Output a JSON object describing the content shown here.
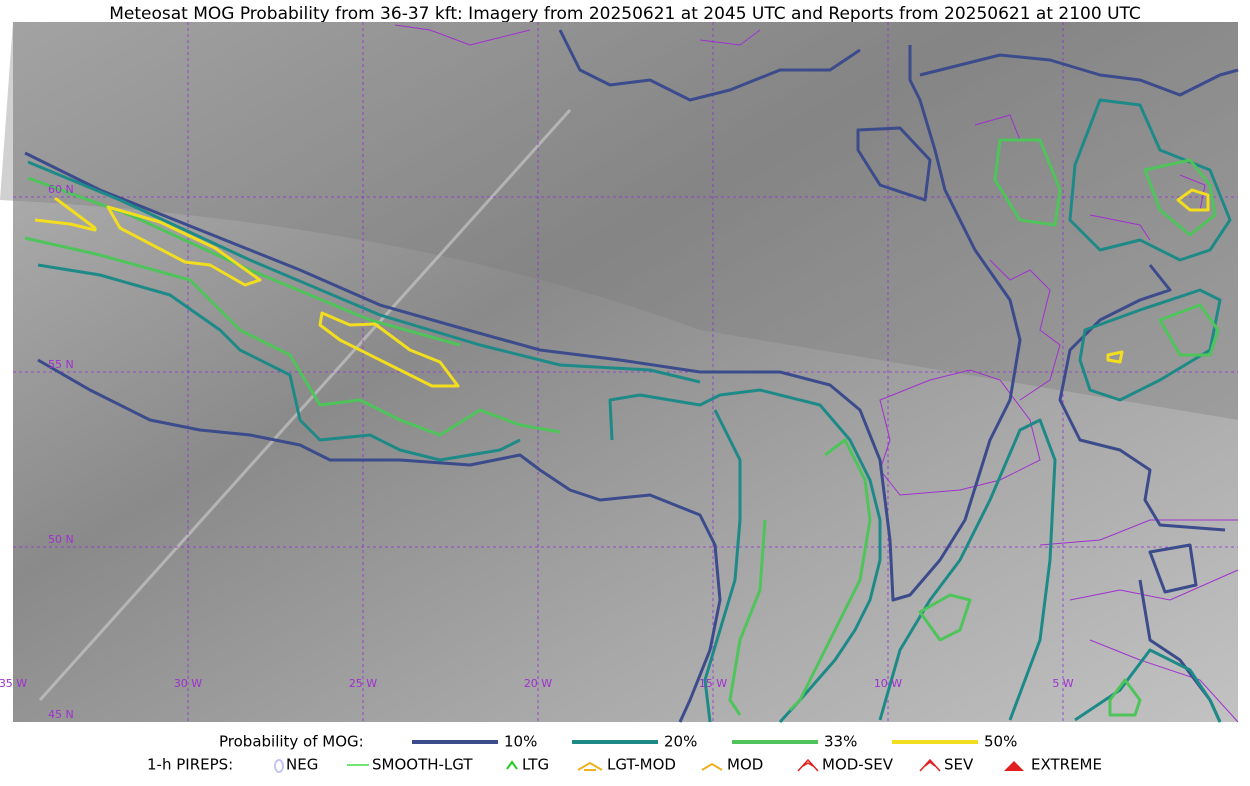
{
  "title": "Meteosat MOG Probability from 36-37 kft: Imagery from 20250621 at 2045 UTC and Reports from 20250621 at 2100 UTC",
  "latitude_labels": [
    "60 N",
    "55 N",
    "50 N",
    "45 N"
  ],
  "longitude_labels": [
    "35 W",
    "30 W",
    "25 W",
    "20 W",
    "15 W",
    "10 W",
    "5 W"
  ],
  "probability_legend": {
    "title": "Probability of MOG:",
    "items": [
      {
        "label": "10%",
        "color": "#3b4b8c"
      },
      {
        "label": "20%",
        "color": "#1d8a88"
      },
      {
        "label": "33%",
        "color": "#4ec45a"
      },
      {
        "label": "50%",
        "color": "#f2de1e"
      }
    ]
  },
  "pirep_legend": {
    "title": "1-h PIREPS:",
    "items": [
      {
        "label": "NEG",
        "color": "#c4c4f2"
      },
      {
        "label": "SMOOTH-LGT",
        "color": "#44dd44"
      },
      {
        "label": "LTG",
        "color": "#22cc22"
      },
      {
        "label": "LGT-MOD",
        "color": "#f0b020"
      },
      {
        "label": "MOD",
        "color": "#f0b020"
      },
      {
        "label": "MOD-SEV",
        "color": "#e02020"
      },
      {
        "label": "SEV",
        "color": "#e02020"
      },
      {
        "label": "EXTREME",
        "color": "#e02020"
      }
    ]
  }
}
